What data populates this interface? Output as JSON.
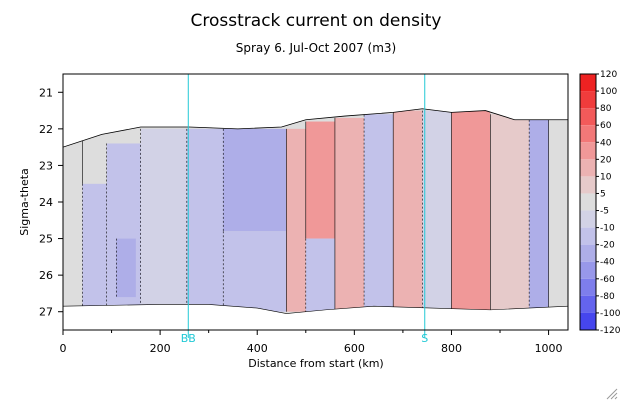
{
  "chart_data": {
    "type": "heatmap",
    "title": "Crosstrack current on density",
    "subtitle": "Spray 6. Jul-Oct 2007 (m3)",
    "xlabel": "Distance from start (km)",
    "ylabel": "Sigma-theta",
    "xlim": [
      0,
      1040
    ],
    "ylim": [
      27.5,
      20.5
    ],
    "x_ticks": [
      0,
      200,
      400,
      600,
      800,
      1000
    ],
    "y_ticks": [
      21,
      22,
      23,
      24,
      25,
      26,
      27
    ],
    "grid": false,
    "markers": [
      {
        "label": "BB",
        "x": 258
      },
      {
        "label": "S",
        "x": 745
      }
    ],
    "colorbar": {
      "levels": [
        120,
        100,
        80,
        60,
        40,
        20,
        10,
        5,
        -5,
        -10,
        -20,
        -40,
        -60,
        -80,
        -100,
        -120
      ],
      "level_labels": [
        "120",
        "100",
        "80",
        "60",
        "40",
        "20",
        "10",
        "5",
        "-5",
        "-10",
        "-20",
        "-40",
        "-60",
        "-80",
        "-100",
        "-120"
      ],
      "colors": [
        "#ee2222",
        "#f03c3c",
        "#f25a5a",
        "#f27878",
        "#f09898",
        "#ecb2b2",
        "#e6caca",
        "#dddddd",
        "#d2d2e6",
        "#c2c2ea",
        "#aeaee8",
        "#9898ea",
        "#7e7eec",
        "#6464ee",
        "#4646ee"
      ]
    },
    "domain_top_sigma": [
      {
        "x": 0,
        "y": 22.5
      },
      {
        "x": 80,
        "y": 22.15
      },
      {
        "x": 160,
        "y": 21.95
      },
      {
        "x": 260,
        "y": 21.95
      },
      {
        "x": 360,
        "y": 22.0
      },
      {
        "x": 450,
        "y": 21.95
      },
      {
        "x": 500,
        "y": 21.75
      },
      {
        "x": 580,
        "y": 21.65
      },
      {
        "x": 680,
        "y": 21.55
      },
      {
        "x": 740,
        "y": 21.45
      },
      {
        "x": 800,
        "y": 21.55
      },
      {
        "x": 870,
        "y": 21.5
      },
      {
        "x": 930,
        "y": 21.75
      },
      {
        "x": 1040,
        "y": 21.75
      }
    ],
    "domain_bottom_sigma": [
      {
        "x": 0,
        "y": 26.85
      },
      {
        "x": 200,
        "y": 26.8
      },
      {
        "x": 300,
        "y": 26.8
      },
      {
        "x": 400,
        "y": 26.9
      },
      {
        "x": 460,
        "y": 27.05
      },
      {
        "x": 540,
        "y": 26.95
      },
      {
        "x": 640,
        "y": 26.85
      },
      {
        "x": 760,
        "y": 26.9
      },
      {
        "x": 880,
        "y": 26.95
      },
      {
        "x": 1040,
        "y": 26.85
      }
    ],
    "regions": [
      {
        "x0": 0,
        "x1": 40,
        "y0": 22.0,
        "y1": 27.0,
        "value": 0
      },
      {
        "x0": 40,
        "x1": 90,
        "y0": 23.5,
        "y1": 27.0,
        "value": -12
      },
      {
        "x0": 40,
        "x1": 90,
        "y0": 22.0,
        "y1": 23.5,
        "value": 0
      },
      {
        "x0": 90,
        "x1": 160,
        "y0": 22.4,
        "y1": 27.0,
        "value": -15
      },
      {
        "x0": 110,
        "x1": 150,
        "y0": 25.0,
        "y1": 26.6,
        "value": -25
      },
      {
        "x0": 160,
        "x1": 255,
        "y0": 22.0,
        "y1": 27.0,
        "value": -8
      },
      {
        "x0": 255,
        "x1": 330,
        "y0": 22.0,
        "y1": 27.0,
        "value": -15
      },
      {
        "x0": 330,
        "x1": 460,
        "y0": 22.0,
        "y1": 24.8,
        "value": -25
      },
      {
        "x0": 330,
        "x1": 460,
        "y0": 24.8,
        "y1": 27.0,
        "value": -12
      },
      {
        "x0": 460,
        "x1": 500,
        "y0": 22.0,
        "y1": 27.0,
        "value": 12
      },
      {
        "x0": 500,
        "x1": 560,
        "y0": 21.8,
        "y1": 25.0,
        "value": 30
      },
      {
        "x0": 500,
        "x1": 560,
        "y0": 25.0,
        "y1": 27.0,
        "value": -15
      },
      {
        "x0": 560,
        "x1": 620,
        "y0": 21.7,
        "y1": 27.0,
        "value": 10
      },
      {
        "x0": 620,
        "x1": 680,
        "y0": 21.6,
        "y1": 27.0,
        "value": -12
      },
      {
        "x0": 680,
        "x1": 740,
        "y0": 21.5,
        "y1": 27.0,
        "value": 15
      },
      {
        "x0": 740,
        "x1": 800,
        "y0": 21.5,
        "y1": 27.0,
        "value": -10
      },
      {
        "x0": 800,
        "x1": 880,
        "y0": 21.5,
        "y1": 27.0,
        "value": 20
      },
      {
        "x0": 880,
        "x1": 960,
        "y0": 21.6,
        "y1": 27.0,
        "value": 8
      },
      {
        "x0": 960,
        "x1": 1000,
        "y0": 21.7,
        "y1": 27.0,
        "value": -40
      },
      {
        "x0": 1000,
        "x1": 1040,
        "y0": 21.7,
        "y1": 27.0,
        "value": 2
      }
    ]
  }
}
